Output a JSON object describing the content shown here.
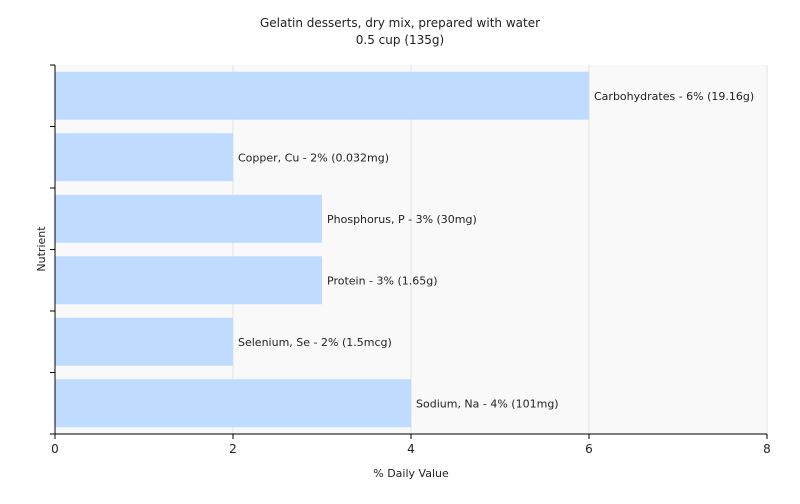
{
  "chart_data": {
    "type": "bar",
    "orientation": "horizontal",
    "title": "Gelatin desserts, dry mix, prepared with water",
    "subtitle": "0.5 cup (135g)",
    "xlabel": "% Daily Value",
    "ylabel": "Nutrient",
    "xlim": [
      0,
      8
    ],
    "xticks": [
      "0",
      "2",
      "4",
      "6",
      "8"
    ],
    "grid": true,
    "legend": "none",
    "bar_color": "#bfdbff",
    "categories": [
      "Carbohydrates",
      "Copper, Cu",
      "Phosphorus, P",
      "Protein",
      "Selenium, Se",
      "Sodium, Na"
    ],
    "values": [
      6,
      2,
      3,
      3,
      2,
      4
    ],
    "data_labels": [
      "Carbohydrates - 6% (19.16g)",
      "Copper, Cu - 2% (0.032mg)",
      "Phosphorus, P - 3% (30mg)",
      "Protein - 3% (1.65g)",
      "Selenium, Se - 2% (1.5mcg)",
      "Sodium, Na - 4% (101mg)"
    ]
  }
}
